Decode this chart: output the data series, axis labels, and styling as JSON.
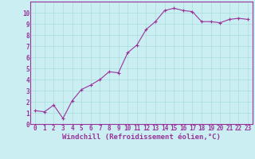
{
  "x": [
    0,
    1,
    2,
    3,
    4,
    5,
    6,
    7,
    8,
    9,
    10,
    11,
    12,
    13,
    14,
    15,
    16,
    17,
    18,
    19,
    20,
    21,
    22,
    23
  ],
  "y": [
    1.2,
    1.1,
    1.7,
    0.5,
    2.1,
    3.1,
    3.5,
    4.0,
    4.7,
    4.6,
    6.4,
    7.1,
    8.5,
    9.2,
    10.2,
    10.4,
    10.2,
    10.1,
    9.2,
    9.2,
    9.1,
    9.4,
    9.5,
    9.4
  ],
  "line_color": "#993399",
  "marker": "+",
  "markersize": 3,
  "linewidth": 0.8,
  "xlabel": "Windchill (Refroidissement éolien,°C)",
  "xlim": [
    -0.5,
    23.5
  ],
  "ylim": [
    0,
    11
  ],
  "yticks": [
    0,
    1,
    2,
    3,
    4,
    5,
    6,
    7,
    8,
    9,
    10
  ],
  "ytick_labels": [
    "0",
    "1",
    "2",
    "3",
    "4",
    "5",
    "6",
    "7",
    "8",
    "9",
    "10"
  ],
  "background_color": "#cbeef3",
  "grid_color": "#aadddd",
  "tick_fontsize": 5.5,
  "xlabel_fontsize": 6.5,
  "label_color": "#993399",
  "spine_color": "#993399"
}
